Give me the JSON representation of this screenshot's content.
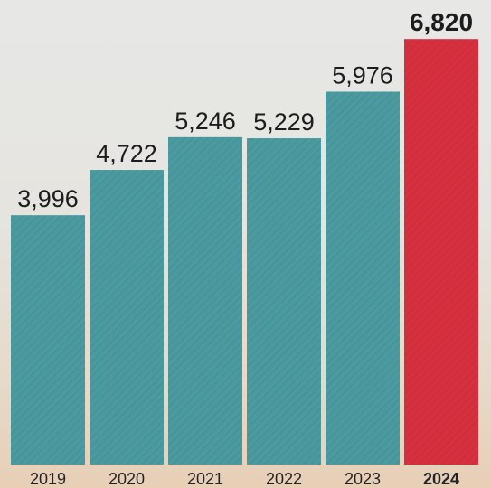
{
  "chart_data": {
    "type": "bar",
    "categories": [
      "2019",
      "2020",
      "2021",
      "2022",
      "2023",
      "2024"
    ],
    "values": [
      3996,
      4722,
      5246,
      5229,
      5976,
      6820
    ],
    "value_labels": [
      "3,996",
      "4,722",
      "5,246",
      "5,229",
      "5,976",
      "6,820"
    ],
    "highlight_index": 5,
    "title": "",
    "xlabel": "",
    "ylabel": "",
    "grid": false,
    "legend": "none",
    "colors": {
      "bar": "#4a9a9f",
      "highlight_bar": "#d6303f",
      "text": "#1c1c1c"
    }
  }
}
